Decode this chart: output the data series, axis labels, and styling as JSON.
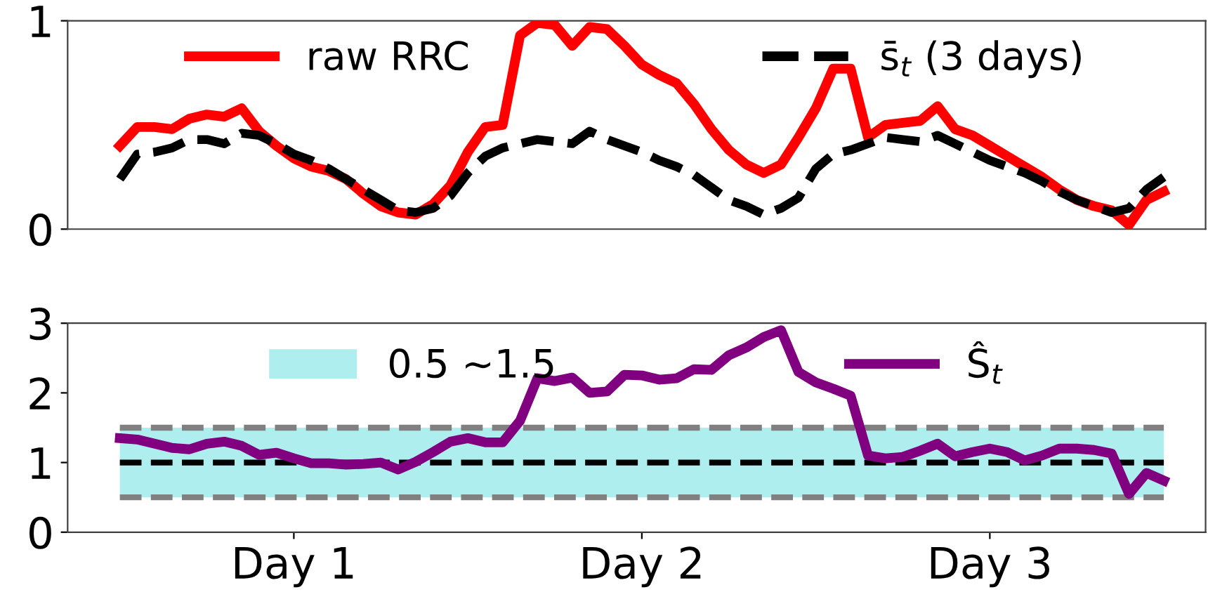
{
  "chart_data": [
    {
      "type": "line",
      "categories": [
        null,
        null,
        null,
        null,
        null,
        null,
        null,
        null,
        null,
        null,
        null,
        null,
        null,
        null,
        null,
        null,
        null,
        null,
        null,
        null,
        null,
        null,
        null,
        null,
        null,
        null,
        null,
        null,
        null,
        null,
        null,
        null,
        null,
        null,
        null,
        null,
        null,
        null,
        null,
        null,
        null,
        null,
        null,
        null,
        null,
        null,
        null,
        null,
        null,
        null,
        null,
        null,
        null,
        null,
        null,
        null,
        null,
        null,
        null,
        null,
        null
      ],
      "ylim": [
        0,
        1
      ],
      "yticks": [
        0,
        1
      ],
      "tick_labels": "y",
      "legend": "top",
      "line_style": "solid",
      "series": [
        {
          "name": "raw RRC",
          "color": "#ff0000",
          "values": [
            0.4,
            0.49,
            0.49,
            0.48,
            0.53,
            0.55,
            0.54,
            0.58,
            0.47,
            0.4,
            0.34,
            0.3,
            0.28,
            0.24,
            0.17,
            0.11,
            0.08,
            0.07,
            0.12,
            0.21,
            0.37,
            0.49,
            0.5,
            0.93,
            0.99,
            0.98,
            0.88,
            0.97,
            0.96,
            0.88,
            0.79,
            0.74,
            0.7,
            0.6,
            0.48,
            0.38,
            0.31,
            0.27,
            0.31,
            0.44,
            0.58,
            0.77,
            0.77,
            0.44,
            0.5,
            0.51,
            0.52,
            0.59,
            0.48,
            0.45,
            0.4,
            0.35,
            0.3,
            0.25,
            0.19,
            0.14,
            0.11,
            0.09,
            0.02,
            0.14,
            0.18
          ]
        },
        {
          "name": "s̄$_{t}$ (3 days)",
          "color": "#000000",
          "line_style": "dashed",
          "values": [
            0.24,
            0.36,
            0.37,
            0.39,
            0.43,
            0.43,
            0.41,
            0.46,
            0.45,
            0.41,
            0.36,
            0.33,
            0.29,
            0.24,
            0.19,
            0.14,
            0.09,
            0.08,
            0.1,
            0.16,
            0.27,
            0.35,
            0.39,
            0.41,
            0.43,
            0.42,
            0.41,
            0.47,
            0.43,
            0.4,
            0.37,
            0.33,
            0.3,
            0.26,
            0.2,
            0.14,
            0.11,
            0.07,
            0.1,
            0.15,
            0.29,
            0.36,
            0.38,
            0.41,
            0.44,
            0.43,
            0.42,
            0.45,
            0.41,
            0.37,
            0.33,
            0.3,
            0.27,
            0.23,
            0.18,
            0.14,
            0.11,
            0.08,
            0.1,
            0.19,
            0.25
          ]
        }
      ]
    },
    {
      "type": "line",
      "categories": [
        null,
        null,
        null,
        null,
        null,
        null,
        null,
        null,
        null,
        null,
        "Day 1",
        null,
        null,
        null,
        null,
        null,
        null,
        null,
        null,
        null,
        null,
        null,
        null,
        null,
        null,
        null,
        null,
        null,
        null,
        null,
        "Day 2",
        null,
        null,
        null,
        null,
        null,
        null,
        null,
        null,
        null,
        null,
        null,
        null,
        null,
        null,
        null,
        null,
        null,
        null,
        null,
        "Day 3",
        null,
        null,
        null,
        null,
        null,
        null,
        null,
        null,
        null,
        null
      ],
      "ylim": [
        0,
        3
      ],
      "yticks": [
        0,
        1,
        2,
        3
      ],
      "legend": "top",
      "line_style": "solid",
      "bands": [
        {
          "axis": "y",
          "from": 0.5,
          "to": 1.5,
          "label": "0.5 ~1.5",
          "color": "#afeeee"
        }
      ],
      "ref_lines": [
        {
          "axis": "y",
          "value": 0.5,
          "color": "#808080",
          "line_style": "dashed"
        },
        {
          "axis": "y",
          "value": 1.5,
          "color": "#808080",
          "line_style": "dashed"
        },
        {
          "axis": "y",
          "value": 1,
          "color": "#000000",
          "line_style": "dashed"
        }
      ],
      "series": [
        {
          "name": "Ŝ$_{t}$",
          "color": "#800080",
          "values": [
            1.35,
            1.33,
            1.27,
            1.21,
            1.19,
            1.27,
            1.3,
            1.24,
            1.11,
            1.14,
            1.06,
            0.99,
            0.99,
            0.97,
            0.98,
            1.0,
            0.9,
            1.01,
            1.15,
            1.3,
            1.35,
            1.29,
            1.29,
            1.6,
            2.21,
            2.17,
            2.22,
            2.0,
            2.02,
            2.26,
            2.25,
            2.19,
            2.21,
            2.34,
            2.33,
            2.54,
            2.65,
            2.8,
            2.9,
            2.3,
            2.15,
            2.06,
            1.96,
            1.1,
            1.06,
            1.08,
            1.17,
            1.27,
            1.09,
            1.15,
            1.2,
            1.15,
            1.03,
            1.1,
            1.2,
            1.2,
            1.18,
            1.13,
            0.55,
            0.85,
            0.74
          ]
        }
      ]
    }
  ]
}
